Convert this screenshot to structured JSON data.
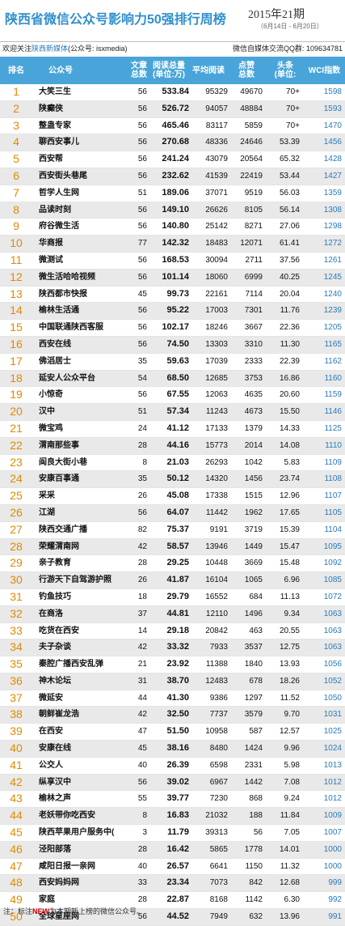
{
  "title": "陕西省微信公众号影响力50强排行周榜",
  "week": "2015年21期",
  "date_range": "（6月14日 - 6月20日）",
  "follow_text": "欢迎关注",
  "follow_account": "陕西新媒体",
  "follow_id": "(公众号: isxmedia)",
  "qq_group": "微信自媒体交流QQ群: 109634781",
  "headers": {
    "rank": "排名",
    "name": "公众号",
    "total_1": "文章",
    "total_2": "总数",
    "read_1": "阅读总量",
    "read_2": "(单位:万)",
    "avg": "平均阅读",
    "like_1": "点赞",
    "like_2": "总数",
    "head_1": "头条",
    "head_2": "(单位:",
    "wci": "WCI指数"
  },
  "rows": [
    {
      "rank": "1",
      "name": "大笑三生",
      "total": "56",
      "read": "533.84",
      "avg": "95329",
      "like": "49670",
      "head": "70+",
      "wci": "1598"
    },
    {
      "rank": "2",
      "name": "陕癫侠",
      "total": "56",
      "read": "526.72",
      "avg": "94057",
      "like": "48884",
      "head": "70+",
      "wci": "1593"
    },
    {
      "rank": "3",
      "name": "整蛊专家",
      "total": "56",
      "read": "465.46",
      "avg": "83117",
      "like": "5859",
      "head": "70+",
      "wci": "1470"
    },
    {
      "rank": "4",
      "name": "聊西安事儿",
      "total": "56",
      "read": "270.68",
      "avg": "48336",
      "like": "24646",
      "head": "53.39",
      "wci": "1456"
    },
    {
      "rank": "5",
      "name": "西安帮",
      "total": "56",
      "read": "241.24",
      "avg": "43079",
      "like": "20564",
      "head": "65.32",
      "wci": "1428"
    },
    {
      "rank": "6",
      "name": "西安街头巷尾",
      "total": "56",
      "read": "232.62",
      "avg": "41539",
      "like": "22419",
      "head": "53.44",
      "wci": "1427"
    },
    {
      "rank": "7",
      "name": "哲学人生网",
      "total": "51",
      "read": "189.06",
      "avg": "37071",
      "like": "9519",
      "head": "56.03",
      "wci": "1359"
    },
    {
      "rank": "8",
      "name": "品读时刻",
      "total": "56",
      "read": "149.10",
      "avg": "26626",
      "like": "8105",
      "head": "56.14",
      "wci": "1308"
    },
    {
      "rank": "9",
      "name": "府谷微生活",
      "total": "56",
      "read": "140.80",
      "avg": "25142",
      "like": "8271",
      "head": "27.06",
      "wci": "1298"
    },
    {
      "rank": "10",
      "name": "华商报",
      "total": "77",
      "read": "142.32",
      "avg": "18483",
      "like": "12071",
      "head": "61.41",
      "wci": "1272"
    },
    {
      "rank": "11",
      "name": "微测试",
      "total": "56",
      "read": "168.53",
      "avg": "30094",
      "like": "2711",
      "head": "37.56",
      "wci": "1261"
    },
    {
      "rank": "12",
      "name": "微生活哈哈视频",
      "total": "56",
      "read": "101.14",
      "avg": "18060",
      "like": "6999",
      "head": "40.25",
      "wci": "1245"
    },
    {
      "rank": "13",
      "name": "陕西都市快报",
      "total": "45",
      "read": "99.73",
      "avg": "22161",
      "like": "7114",
      "head": "20.04",
      "wci": "1240"
    },
    {
      "rank": "14",
      "name": "榆林生活通",
      "total": "56",
      "read": "95.22",
      "avg": "17003",
      "like": "7301",
      "head": "11.76",
      "wci": "1239"
    },
    {
      "rank": "15",
      "name": "中国联通陕西客服",
      "total": "56",
      "read": "102.17",
      "avg": "18246",
      "like": "3667",
      "head": "22.36",
      "wci": "1205"
    },
    {
      "rank": "16",
      "name": "西安在线",
      "total": "56",
      "read": "74.50",
      "avg": "13303",
      "like": "3310",
      "head": "11.30",
      "wci": "1165"
    },
    {
      "rank": "17",
      "name": "佛滔居士",
      "total": "35",
      "read": "59.63",
      "avg": "17039",
      "like": "2333",
      "head": "22.39",
      "wci": "1162"
    },
    {
      "rank": "18",
      "name": "延安人公众平台",
      "total": "54",
      "read": "68.50",
      "avg": "12685",
      "like": "3753",
      "head": "16.86",
      "wci": "1160"
    },
    {
      "rank": "19",
      "name": "小惊奇",
      "total": "56",
      "read": "67.55",
      "avg": "12063",
      "like": "4635",
      "head": "20.60",
      "wci": "1159"
    },
    {
      "rank": "20",
      "name": "汉中",
      "total": "51",
      "read": "57.34",
      "avg": "11243",
      "like": "4673",
      "head": "15.50",
      "wci": "1146"
    },
    {
      "rank": "21",
      "name": "微宝鸡",
      "total": "24",
      "read": "41.12",
      "avg": "17133",
      "like": "1379",
      "head": "14.33",
      "wci": "1125"
    },
    {
      "rank": "22",
      "name": "渭南那些事",
      "total": "28",
      "read": "44.16",
      "avg": "15773",
      "like": "2014",
      "head": "14.08",
      "wci": "1110"
    },
    {
      "rank": "23",
      "name": "阎良大街小巷",
      "total": "8",
      "read": "21.03",
      "avg": "26293",
      "like": "1042",
      "head": "5.83",
      "wci": "1109"
    },
    {
      "rank": "24",
      "name": "安康百事通",
      "total": "35",
      "read": "50.12",
      "avg": "14320",
      "like": "1456",
      "head": "23.74",
      "wci": "1108"
    },
    {
      "rank": "25",
      "name": "采采",
      "total": "26",
      "read": "45.08",
      "avg": "17338",
      "like": "1515",
      "head": "12.96",
      "wci": "1107"
    },
    {
      "rank": "26",
      "name": "江湖",
      "total": "56",
      "read": "64.07",
      "avg": "11442",
      "like": "1962",
      "head": "17.65",
      "wci": "1105"
    },
    {
      "rank": "27",
      "name": "陕西交通广播",
      "total": "82",
      "read": "75.37",
      "avg": "9191",
      "like": "3719",
      "head": "15.39",
      "wci": "1104"
    },
    {
      "rank": "28",
      "name": "荣耀渭南网",
      "total": "42",
      "read": "58.57",
      "avg": "13946",
      "like": "1449",
      "head": "15.47",
      "wci": "1095"
    },
    {
      "rank": "29",
      "name": "亲子教育",
      "total": "28",
      "read": "29.25",
      "avg": "10448",
      "like": "3669",
      "head": "15.48",
      "wci": "1092"
    },
    {
      "rank": "30",
      "name": "行游天下自驾游护照",
      "total": "26",
      "read": "41.87",
      "avg": "16104",
      "like": "1065",
      "head": "6.96",
      "wci": "1085"
    },
    {
      "rank": "31",
      "name": "钓鱼技巧",
      "total": "18",
      "read": "29.79",
      "avg": "16552",
      "like": "684",
      "head": "11.13",
      "wci": "1072"
    },
    {
      "rank": "32",
      "name": "在商洛",
      "total": "37",
      "read": "44.81",
      "avg": "12110",
      "like": "1496",
      "head": "9.34",
      "wci": "1063"
    },
    {
      "rank": "33",
      "name": "吃货在西安",
      "total": "14",
      "read": "29.18",
      "avg": "20842",
      "like": "463",
      "head": "20.55",
      "wci": "1063"
    },
    {
      "rank": "34",
      "name": "夫子杂谈",
      "total": "42",
      "read": "33.32",
      "avg": "7933",
      "like": "3537",
      "head": "12.75",
      "wci": "1063"
    },
    {
      "rank": "35",
      "name": "秦腔广播西安乱弹",
      "total": "21",
      "read": "23.92",
      "avg": "11388",
      "like": "1840",
      "head": "13.93",
      "wci": "1056"
    },
    {
      "rank": "36",
      "name": "神木论坛",
      "total": "31",
      "read": "38.70",
      "avg": "12483",
      "like": "678",
      "head": "18.26",
      "wci": "1052"
    },
    {
      "rank": "37",
      "name": "微延安",
      "total": "44",
      "read": "41.30",
      "avg": "9386",
      "like": "1297",
      "head": "11.52",
      "wci": "1050"
    },
    {
      "rank": "38",
      "name": "朝鲜崔龙浩",
      "total": "42",
      "read": "32.50",
      "avg": "7737",
      "like": "3579",
      "head": "9.70",
      "wci": "1031"
    },
    {
      "rank": "39",
      "name": "在西安",
      "total": "47",
      "read": "51.50",
      "avg": "10958",
      "like": "587",
      "head": "12.57",
      "wci": "1025"
    },
    {
      "rank": "40",
      "name": "安康在线",
      "total": "45",
      "read": "38.16",
      "avg": "8480",
      "like": "1424",
      "head": "9.96",
      "wci": "1024"
    },
    {
      "rank": "41",
      "name": "公交人",
      "total": "40",
      "read": "26.39",
      "avg": "6598",
      "like": "2331",
      "head": "5.98",
      "wci": "1013"
    },
    {
      "rank": "42",
      "name": "纵享汉中",
      "total": "56",
      "read": "39.02",
      "avg": "6967",
      "like": "1442",
      "head": "7.08",
      "wci": "1012"
    },
    {
      "rank": "43",
      "name": "榆林之声",
      "total": "55",
      "read": "39.77",
      "avg": "7230",
      "like": "868",
      "head": "9.24",
      "wci": "1012"
    },
    {
      "rank": "44",
      "name": "老妖带你吃西安",
      "total": "8",
      "read": "16.83",
      "avg": "21032",
      "like": "188",
      "head": "11.84",
      "wci": "1009"
    },
    {
      "rank": "45",
      "name": "陕西苹果用户服务中(",
      "total": "3",
      "read": "11.79",
      "avg": "39313",
      "like": "56",
      "head": "7.05",
      "wci": "1007"
    },
    {
      "rank": "46",
      "name": "泾阳部落",
      "total": "28",
      "read": "16.42",
      "avg": "5865",
      "like": "1778",
      "head": "14.01",
      "wci": "1000"
    },
    {
      "rank": "47",
      "name": "咸阳日报一亲网",
      "total": "40",
      "read": "26.57",
      "avg": "6641",
      "like": "1150",
      "head": "11.32",
      "wci": "1000"
    },
    {
      "rank": "48",
      "name": "西安妈妈网",
      "total": "33",
      "read": "23.34",
      "avg": "7073",
      "like": "842",
      "head": "12.68",
      "wci": "999"
    },
    {
      "rank": "49",
      "name": "家庭",
      "total": "28",
      "read": "22.87",
      "avg": "8168",
      "like": "1142",
      "head": "6.30",
      "wci": "992"
    },
    {
      "rank": "50",
      "name": "全球星座网",
      "total": "56",
      "read": "44.52",
      "avg": "7949",
      "like": "632",
      "head": "13.96",
      "wci": "991"
    }
  ],
  "note_prefix": "注：标注",
  "note_new": "NEW",
  "note_suffix": "为本期新上榜的微信公众号。",
  "colors": {
    "header_bg": "#49a5d9",
    "title": "#2f8fce",
    "rank": "#e08a00",
    "wci": "#2a7ab8",
    "row_alt": "#e9e9e9"
  }
}
